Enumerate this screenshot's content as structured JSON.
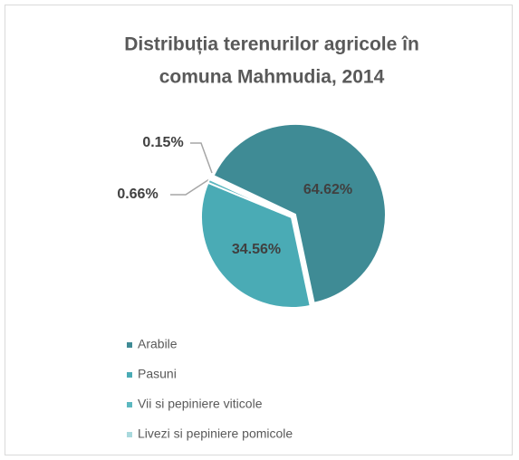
{
  "chart_data": {
    "type": "pie",
    "title": [
      "Distribuția terenurilor agricole în",
      "comuna Mahmudia, 2014"
    ],
    "categories": [
      "Arabile",
      "Pasuni",
      "Vii si pepiniere viticole",
      "Livezi si pepiniere pomicole"
    ],
    "values": [
      64.62,
      34.56,
      0.66,
      0.15
    ],
    "value_labels": [
      "64.62%",
      "34.56%",
      "0.66%",
      "0.15%"
    ],
    "colors": [
      "#3f8b95",
      "#4aabb5",
      "#5cb8c0",
      "#a9d9dd"
    ],
    "legend": "bottom"
  }
}
